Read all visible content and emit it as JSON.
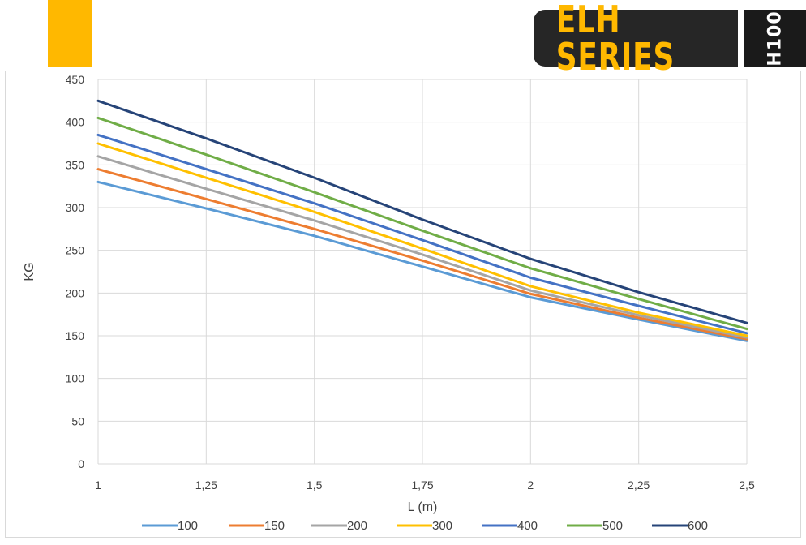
{
  "header": {
    "brand": "ELH SERIES",
    "model": "H100",
    "colors": {
      "accent": "#FFB800",
      "badge_bg": "#262626",
      "model_bg": "#1a1a1a",
      "model_text": "#ffffff"
    }
  },
  "chart_data": {
    "type": "line",
    "title": "",
    "xlabel": "L (m)",
    "ylabel": "KG",
    "x": [
      1,
      1.25,
      1.5,
      1.75,
      2,
      2.25,
      2.5
    ],
    "x_tick_labels": [
      "1",
      "1,25",
      "1,5",
      "1,75",
      "2",
      "2,25",
      "2,5"
    ],
    "y_ticks": [
      0,
      50,
      100,
      150,
      200,
      250,
      300,
      350,
      400,
      450
    ],
    "ylim": [
      0,
      450
    ],
    "xlim": [
      1,
      2.5
    ],
    "grid": true,
    "legend_position": "bottom",
    "series": [
      {
        "name": "100",
        "color": "#5B9BD5",
        "values": [
          330,
          299,
          267,
          231,
          195,
          169,
          144
        ]
      },
      {
        "name": "150",
        "color": "#ED7D31",
        "values": [
          345,
          310,
          275,
          238,
          199,
          171,
          146
        ]
      },
      {
        "name": "200",
        "color": "#A5A5A5",
        "values": [
          360,
          322,
          285,
          245,
          203,
          174,
          148
        ]
      },
      {
        "name": "300",
        "color": "#FFC000",
        "values": [
          375,
          335,
          295,
          252,
          208,
          177,
          150
        ]
      },
      {
        "name": "400",
        "color": "#4472C4",
        "values": [
          385,
          345,
          305,
          262,
          218,
          185,
          153
        ]
      },
      {
        "name": "500",
        "color": "#70AD47",
        "values": [
          405,
          362,
          318,
          273,
          229,
          193,
          158
        ]
      },
      {
        "name": "600",
        "color": "#264478",
        "values": [
          425,
          381,
          335,
          286,
          240,
          201,
          165
        ]
      }
    ]
  }
}
